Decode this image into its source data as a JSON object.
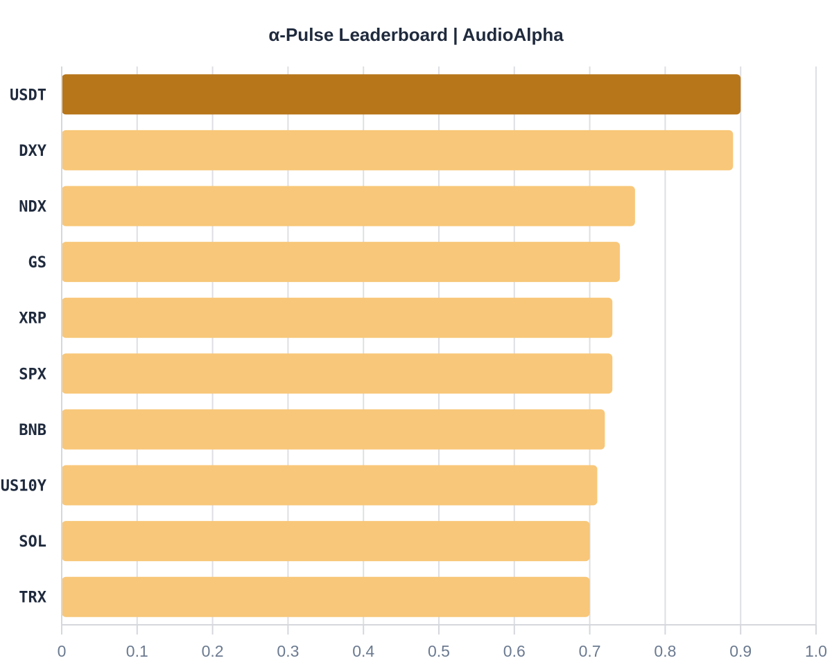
{
  "chart_data": {
    "type": "bar",
    "orientation": "horizontal",
    "title": "α-Pulse Leaderboard | AudioAlpha",
    "categories": [
      "USDT",
      "DXY",
      "NDX",
      "GS",
      "XRP",
      "SPX",
      "BNB",
      "US10Y",
      "SOL",
      "TRX"
    ],
    "values": [
      0.9,
      0.89,
      0.76,
      0.74,
      0.73,
      0.73,
      0.72,
      0.71,
      0.7,
      0.7
    ],
    "highlight_index": 0,
    "xlim": [
      0,
      1.0
    ],
    "x_ticks": [
      "0",
      "0.1",
      "0.2",
      "0.3",
      "0.4",
      "0.5",
      "0.6",
      "0.7",
      "0.8",
      "0.9",
      "1.0"
    ],
    "xlabel": "",
    "ylabel": "",
    "grid": "vertical",
    "legend": "none",
    "colors": {
      "highlight": "#b8761a",
      "bar": "#f8c779",
      "grid": "#dedfe3",
      "axis": "#d5d7dc",
      "title": "#1f2a3d",
      "category_text": "#1f2a3d",
      "tick_text": "#6b7a90"
    }
  }
}
